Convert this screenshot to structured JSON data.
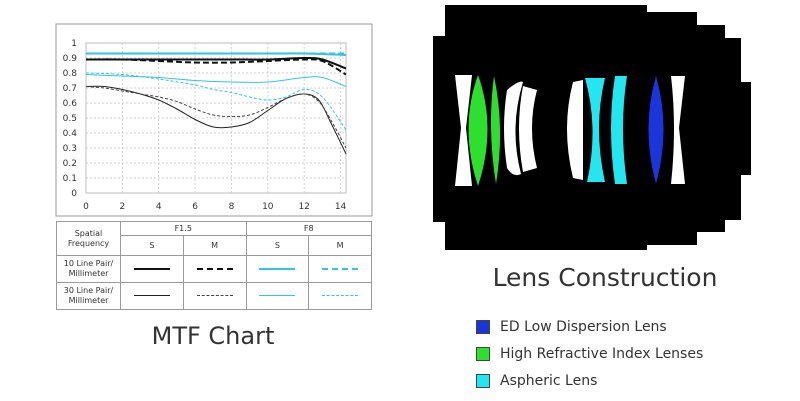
{
  "chart_data": {
    "type": "line",
    "title": "MTF Chart",
    "xlim": [
      0,
      14.3
    ],
    "ylim": [
      0,
      1
    ],
    "x_ticks": [
      "0",
      "2",
      "4",
      "6",
      "8",
      "10",
      "12",
      "14"
    ],
    "y_ticks": [
      "0",
      "0.1",
      "0.2",
      "0.3",
      "0.4",
      "0.5",
      "0.6",
      "0.7",
      "0.8",
      "0.9",
      "1"
    ],
    "grid": true,
    "series": [
      {
        "name": "F1.5 S 10",
        "color": "#111111",
        "dash": "solid",
        "width": 2,
        "x": [
          0,
          2,
          4,
          6,
          8,
          10,
          12,
          13,
          14.3
        ],
        "y": [
          0.89,
          0.89,
          0.89,
          0.89,
          0.89,
          0.89,
          0.9,
          0.89,
          0.83
        ]
      },
      {
        "name": "F1.5 M 10",
        "color": "#111111",
        "dash": "dashed",
        "width": 2,
        "x": [
          0,
          2,
          4,
          6,
          8,
          10,
          12,
          13,
          14.3
        ],
        "y": [
          0.89,
          0.89,
          0.88,
          0.87,
          0.87,
          0.88,
          0.89,
          0.88,
          0.79
        ]
      },
      {
        "name": "F8 S 10",
        "color": "#33c3e6",
        "dash": "solid",
        "width": 2,
        "x": [
          0,
          2,
          4,
          6,
          8,
          10,
          12,
          14.3
        ],
        "y": [
          0.93,
          0.93,
          0.93,
          0.93,
          0.93,
          0.93,
          0.93,
          0.92
        ]
      },
      {
        "name": "F8 M 10",
        "color": "#33c3e6",
        "dash": "dashed",
        "width": 2,
        "x": [
          0,
          2,
          4,
          6,
          8,
          10,
          12,
          14.3
        ],
        "y": [
          0.93,
          0.93,
          0.93,
          0.93,
          0.93,
          0.93,
          0.93,
          0.93
        ]
      },
      {
        "name": "F1.5 S 30",
        "color": "#222222",
        "dash": "solid",
        "width": 1,
        "x": [
          0,
          1,
          2,
          3,
          4,
          5,
          6,
          7,
          8,
          9,
          10,
          11,
          12,
          12.8,
          13.5,
          14.3
        ],
        "y": [
          0.71,
          0.71,
          0.69,
          0.66,
          0.62,
          0.56,
          0.49,
          0.44,
          0.44,
          0.47,
          0.55,
          0.63,
          0.66,
          0.62,
          0.46,
          0.26
        ]
      },
      {
        "name": "F1.5 M 30",
        "color": "#444444",
        "dash": "dotted",
        "width": 1,
        "x": [
          0,
          1,
          2,
          3,
          4,
          5,
          6,
          7,
          8,
          9,
          10,
          11,
          12,
          12.8,
          13.5,
          14.3
        ],
        "y": [
          0.71,
          0.7,
          0.68,
          0.66,
          0.64,
          0.61,
          0.56,
          0.52,
          0.51,
          0.52,
          0.57,
          0.63,
          0.66,
          0.61,
          0.48,
          0.3
        ]
      },
      {
        "name": "F8 S 30",
        "color": "#33c3e6",
        "dash": "solid",
        "width": 1,
        "x": [
          0,
          2,
          4,
          6,
          8,
          10,
          12,
          13,
          14.3
        ],
        "y": [
          0.79,
          0.78,
          0.77,
          0.75,
          0.74,
          0.74,
          0.77,
          0.77,
          0.71
        ]
      },
      {
        "name": "F8 M 30",
        "color": "#33c3e6",
        "dash": "dotted",
        "width": 1,
        "x": [
          0,
          2,
          4,
          6,
          7,
          8,
          9,
          10,
          11,
          12,
          13,
          14.3
        ],
        "y": [
          0.8,
          0.79,
          0.76,
          0.72,
          0.69,
          0.67,
          0.64,
          0.62,
          0.64,
          0.69,
          0.64,
          0.42
        ]
      }
    ]
  },
  "legend_table": {
    "col_header": "Spatial Frequency",
    "f15": "F1.5",
    "f8": "F8",
    "s": "S",
    "m": "M",
    "row_10": "10 Line Pair/ Millimeter",
    "row_30": "30 Line Pair/ Millimeter"
  },
  "mtf_title": "MTF Chart",
  "lens_title": "Lens Construction",
  "lens_legend": [
    {
      "label": "ED Low Dispersion Lens",
      "color": "#1a35d9"
    },
    {
      "label": "High Refractive Index Lenses",
      "color": "#2ee02e"
    },
    {
      "label": "Aspheric Lens",
      "color": "#22e6f0"
    }
  ]
}
